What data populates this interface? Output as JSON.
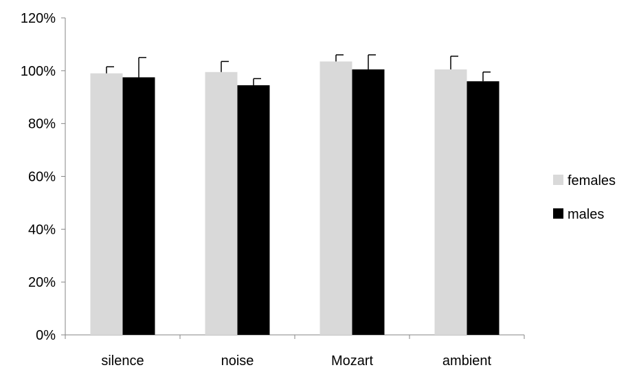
{
  "chart_data": {
    "type": "bar",
    "title": "",
    "xlabel": "",
    "ylabel": "",
    "categories": [
      "silence",
      "noise",
      "Mozart",
      "ambient"
    ],
    "series": [
      {
        "name": "females",
        "color": "#d9d9d9",
        "values": [
          99,
          99.5,
          103.5,
          100.5
        ],
        "error_plus": [
          2.5,
          4,
          2.5,
          5
        ]
      },
      {
        "name": "males",
        "color": "#000000",
        "values": [
          97.5,
          94.5,
          100.5,
          96
        ],
        "error_plus": [
          7.5,
          2.5,
          5.5,
          3.5
        ]
      }
    ],
    "ylim": [
      0,
      120
    ],
    "yticks": [
      0,
      20,
      40,
      60,
      80,
      100,
      120
    ],
    "ytick_labels": [
      "0%",
      "20%",
      "40%",
      "60%",
      "80%",
      "100%",
      "120%"
    ],
    "grid": false,
    "legend_position": "right"
  }
}
